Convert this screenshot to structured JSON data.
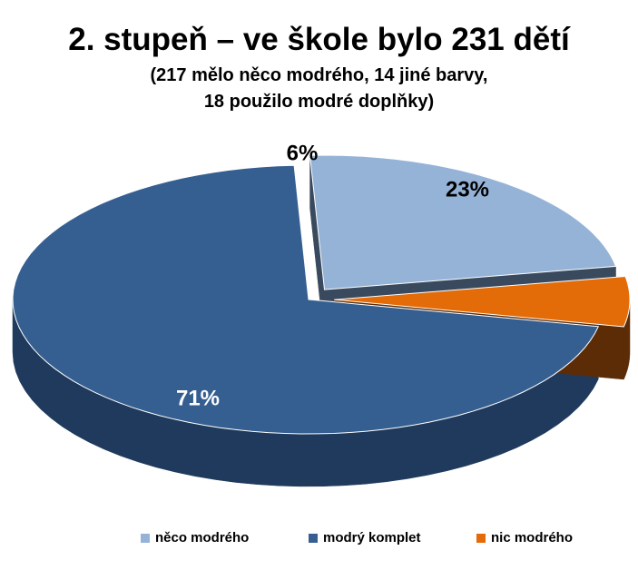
{
  "chart_data": {
    "type": "pie",
    "title": "2. stupeň – ve škole bylo 231 dětí",
    "subtitle_line1": "(217 mělo něco modrého, 14 jiné barvy,",
    "subtitle_line2": "18 použilo modré doplňky)",
    "slices": [
      {
        "name": "něco modrého",
        "value": 23,
        "label": "23%",
        "color": "#95b3d7",
        "side_color": "#3a4a5e",
        "label_color": "#000000",
        "exploded": true
      },
      {
        "name": "modrý komplet",
        "value": 71,
        "label": "71%",
        "color": "#365f91",
        "side_color": "#1f3a5c",
        "label_color": "#ffffff",
        "exploded": false
      },
      {
        "name": "nic modrého",
        "value": 6,
        "label": "6%",
        "color": "#e36c09",
        "side_color": "#5c2c07",
        "label_color": "#000000",
        "exploded": true
      }
    ],
    "legend": [
      "něco modrého",
      "modrý komplet",
      "nic modrého"
    ],
    "legend_position": "bottom",
    "style": "3d-exploded-pie"
  }
}
